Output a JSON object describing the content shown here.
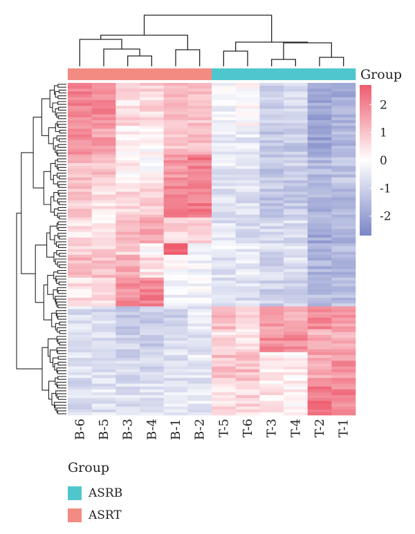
{
  "chart_data": {
    "type": "heatmap",
    "columns": [
      "B-6",
      "B-5",
      "B-3",
      "B-4",
      "B-1",
      "B-2",
      "T-5",
      "T-6",
      "T-3",
      "T-4",
      "T-2",
      "T-1"
    ],
    "column_groups": [
      "ASRT",
      "ASRT",
      "ASRT",
      "ASRT",
      "ASRT",
      "ASRT",
      "ASRB",
      "ASRB",
      "ASRB",
      "ASRB",
      "ASRB",
      "ASRB"
    ],
    "annotation_title": "Group",
    "colorbar": {
      "ticks": [
        2,
        1,
        0,
        -1,
        -2
      ],
      "tick_labels": [
        "2",
        "1",
        "0",
        "-1",
        "-2"
      ],
      "range": [
        -2.7,
        2.7
      ],
      "low_color": "#7b86c6",
      "mid_color": "#ffffff",
      "high_color": "#ee5c6e"
    },
    "row_blocks": [
      {
        "rows": 15,
        "values": [
          2.0,
          2.0,
          0.6,
          0.7,
          1.2,
          1.0,
          -0.2,
          0.0,
          -1.0,
          -0.9,
          -2.0,
          -1.8
        ]
      },
      {
        "rows": 10,
        "values": [
          1.8,
          1.6,
          0.2,
          0.0,
          1.0,
          1.0,
          -0.5,
          -0.5,
          -1.2,
          -1.2,
          -2.0,
          -1.6
        ]
      },
      {
        "rows": 10,
        "values": [
          1.0,
          1.0,
          0.2,
          0.1,
          1.8,
          2.1,
          -0.5,
          -0.6,
          -1.3,
          -1.1,
          -1.5,
          -1.3
        ]
      },
      {
        "rows": 12,
        "values": [
          0.9,
          0.5,
          0.6,
          0.7,
          2.0,
          2.2,
          -0.7,
          -0.7,
          -1.2,
          -1.1,
          -1.7,
          -1.6
        ]
      },
      {
        "rows": 9,
        "values": [
          0.5,
          0.4,
          1.1,
          1.4,
          0.6,
          0.6,
          -0.6,
          -0.7,
          -0.9,
          -0.8,
          -1.9,
          -1.7
        ]
      },
      {
        "rows": 4,
        "values": [
          0.7,
          0.8,
          0.7,
          0.1,
          2.9,
          -0.2,
          -0.4,
          -0.4,
          -0.8,
          -0.5,
          -1.6,
          -1.5
        ]
      },
      {
        "rows": 8,
        "values": [
          1.2,
          1.0,
          1.5,
          0.6,
          0.1,
          -0.2,
          -0.6,
          -0.4,
          -0.9,
          -0.7,
          -1.6,
          -1.5
        ]
      },
      {
        "rows": 10,
        "values": [
          0.5,
          0.5,
          1.8,
          2.1,
          -0.2,
          -0.2,
          -0.8,
          -0.7,
          -1.0,
          -0.9,
          -1.5,
          -1.4
        ]
      },
      {
        "rows": 8,
        "values": [
          -0.7,
          -0.8,
          -1.1,
          -1.2,
          -0.9,
          -0.5,
          1.1,
          0.6,
          1.6,
          1.5,
          1.9,
          1.7
        ]
      },
      {
        "rows": 8,
        "values": [
          -0.7,
          -0.8,
          -1.0,
          -1.1,
          -0.8,
          -0.6,
          0.6,
          0.4,
          1.8,
          1.9,
          1.3,
          1.4
        ]
      },
      {
        "rows": 10,
        "values": [
          -0.6,
          -0.6,
          -0.9,
          -0.8,
          -0.7,
          -0.5,
          1.0,
          1.1,
          0.3,
          0.2,
          1.5,
          1.8
        ]
      },
      {
        "rows": 12,
        "values": [
          -0.8,
          -0.6,
          -0.7,
          -0.6,
          -0.6,
          -0.5,
          0.5,
          0.7,
          0.4,
          0.2,
          2.2,
          2.0
        ]
      }
    ]
  },
  "legend": {
    "title": "Group",
    "items": [
      {
        "label": "ASRB",
        "color": "#4fc6cd"
      },
      {
        "label": "ASRT",
        "color": "#f38b82"
      }
    ]
  }
}
